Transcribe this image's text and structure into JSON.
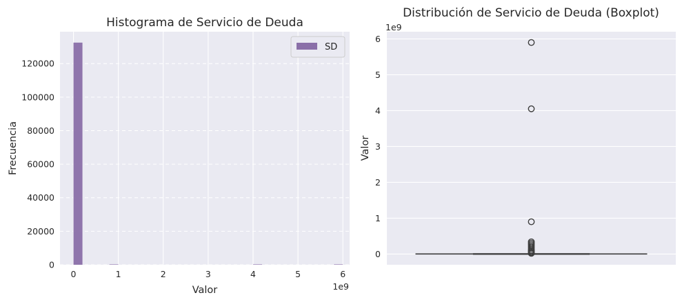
{
  "chart_data": [
    {
      "type": "bar",
      "subtype": "histogram",
      "title": "Histograma de Servicio de Deuda",
      "xlabel": "Valor",
      "ylabel": "Frecuencia",
      "x_offset_label": "1e9",
      "x_ticks": [
        0,
        1,
        2,
        3,
        4,
        5,
        6
      ],
      "x_tick_labels": [
        "0",
        "1",
        "2",
        "3",
        "4",
        "5",
        "6"
      ],
      "y_ticks": [
        0,
        20000,
        40000,
        60000,
        80000,
        100000,
        120000
      ],
      "y_tick_labels": [
        "0",
        "20000",
        "40000",
        "60000",
        "80000",
        "100000",
        "120000"
      ],
      "xlim": [
        -0.3,
        6.15
      ],
      "ylim": [
        0,
        139000
      ],
      "bin_width": 0.2,
      "bins": [
        {
          "x0": 0.0,
          "count": 132500
        },
        {
          "x0": 0.2,
          "count": 0
        },
        {
          "x0": 0.4,
          "count": 0
        },
        {
          "x0": 0.6,
          "count": 0
        },
        {
          "x0": 0.8,
          "count": 3
        },
        {
          "x0": 1.0,
          "count": 0
        },
        {
          "x0": 4.0,
          "count": 1
        },
        {
          "x0": 5.8,
          "count": 1
        }
      ],
      "legend": [
        {
          "label": "SD",
          "color": "#8a6fa8"
        }
      ],
      "legend_position": "top-right",
      "grid": true
    },
    {
      "type": "boxplot",
      "title": "Distribución de Servicio de Deuda (Boxplot)",
      "ylabel": "Valor",
      "y_offset_label": "1e9",
      "y_ticks": [
        0,
        1,
        2,
        3,
        4,
        5,
        6
      ],
      "y_tick_labels": [
        "0",
        "1",
        "2",
        "3",
        "4",
        "5",
        "6"
      ],
      "ylim": [
        -0.3,
        6.2
      ],
      "box": {
        "q1": 0.0,
        "median": 0.0,
        "q3": 0.002,
        "whisker_low": 0.0,
        "whisker_high": 0.004
      },
      "outliers": [
        5.9,
        4.05,
        0.9,
        0.34,
        0.3,
        0.26,
        0.22,
        0.18,
        0.14,
        0.1,
        0.07,
        0.04,
        0.02
      ],
      "grid": true
    }
  ],
  "colors": {
    "plot_bg": "#eaeaf2",
    "grid": "#ffffff",
    "bar": "#8a6fa8",
    "box_line": "#3d3d3d"
  }
}
